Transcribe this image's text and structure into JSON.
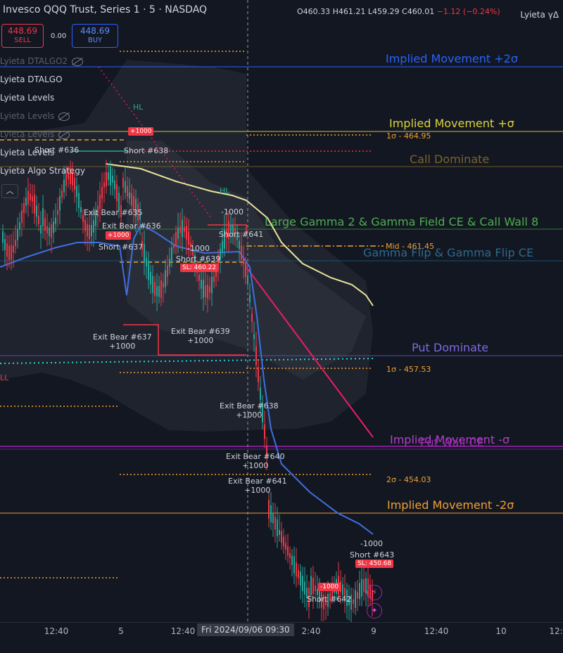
{
  "header": {
    "title": "Invesco QQQ Trust, Series 1 · 5 · NASDAQ",
    "ohlc": {
      "o": "O460.33",
      "h": "H461.21",
      "l": "L459.29",
      "c": "C460.01",
      "chg": "−1.12 (−0.24%)"
    },
    "corner_label": "Lyieta γΔ"
  },
  "trade": {
    "sell_price": "448.69",
    "sell_label": "SELL",
    "spread": "0.00",
    "buy_price": "448.69",
    "buy_label": "BUY"
  },
  "legend": [
    {
      "label": "Lyieta DTALGO2",
      "hidden": true
    },
    {
      "label": "Lyieta DTALGO",
      "hidden": false
    },
    {
      "label": "Lyieta Levels",
      "hidden": false
    },
    {
      "label": "Lyieta Levels",
      "hidden": true
    },
    {
      "label": "Lyieta Levels",
      "hidden": true
    },
    {
      "label": "Lyieta Levels",
      "hidden": false
    },
    {
      "label": "Lyieta Algo Strategy",
      "hidden": false
    }
  ],
  "collapse_icon": "chevron-up-icon",
  "levels": {
    "im_plus2": "Implied Movement +2σ",
    "im_plus1": "Implied Movement +σ",
    "sig1_up": "1σ - 464.95",
    "call_dom": "Call Dominate",
    "large_gamma": "Large Gamma 2 & Gamma Field CE & Call Wall 8",
    "mid": "Mid - 461.45",
    "gamma_flip": "Gamma Flip & Gamma Flip CE",
    "put_dom": "Put Dominate",
    "sig1_dn": "1σ - 457.53",
    "im_minus1": "Implied Movement -σ",
    "put_wall": "Put Wall CE",
    "sig2_dn": "2σ - 454.03",
    "im_minus2": "Implied Movement -2σ",
    "hl1": "HL",
    "hl2": "HL",
    "ll": "LL"
  },
  "trades": {
    "short_636": "Short #636",
    "short_638": "Short #638",
    "t_1000a": "+1000",
    "exit_635": "Exit Bear #635",
    "exit_636": "Exit Bear #636",
    "plus1000_636": "+1000",
    "short_637": "Short #637",
    "m1000_a": "-1000",
    "short_641": "Short #641",
    "m1000_b": "-1000",
    "short_639": "Short #639",
    "sl_639": "SL: 460.22",
    "exit_637": "Exit Bear #637",
    "exit_637_v": "+1000",
    "exit_639": "Exit Bear #639",
    "exit_639_v": "+1000",
    "exit_638": "Exit Bear #638",
    "exit_638_v": "+1000",
    "exit_640": "Exit Bear #640",
    "exit_640_v": "+1000",
    "exit_641": "Exit Bear #641",
    "exit_641_v": "+1000",
    "m1000_c": "-1000",
    "short_643": "Short #643",
    "sl_643": "SL: 450.68",
    "m1000_d": "-1000",
    "short_642": "Short #642"
  },
  "xaxis": {
    "ticks": [
      "12:40",
      "5",
      "12:40",
      "2:40",
      "9",
      "12:40",
      "10",
      "12:"
    ],
    "cursor": "Fri 2024/09/06  09:30"
  },
  "colors": {
    "background": "#131722",
    "red": "#f23645",
    "blue": "#2962ff",
    "yellow_line": "#e8e49a",
    "orange": "#f0a030",
    "green": "#4caf50",
    "purple": "#9c27b0"
  }
}
